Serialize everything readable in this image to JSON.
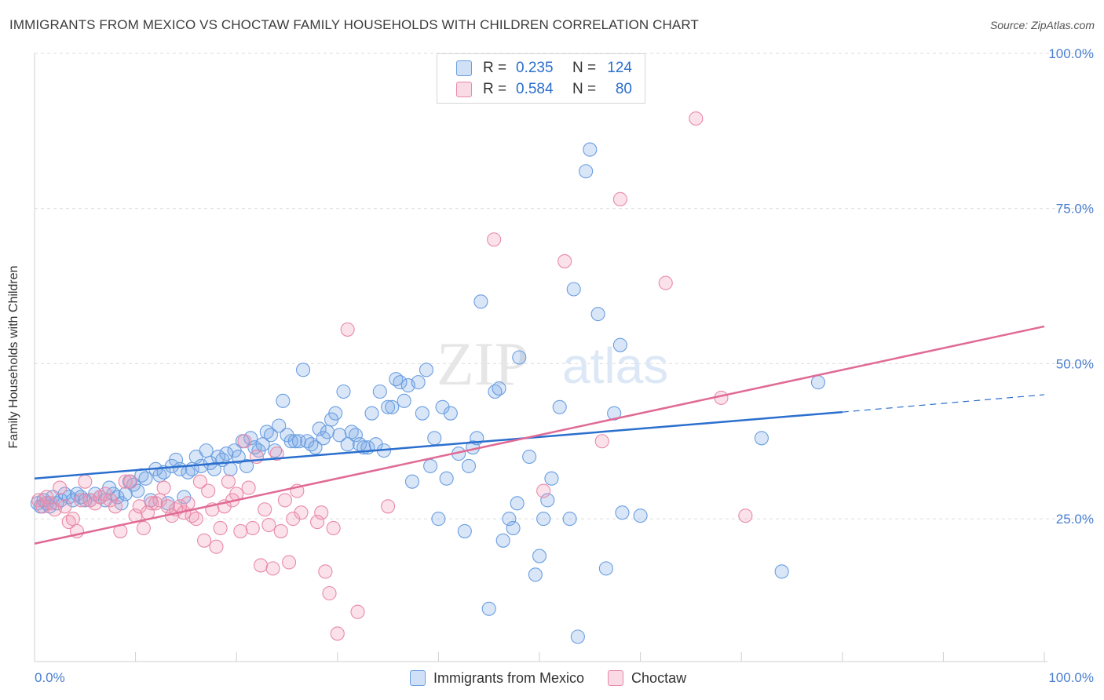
{
  "title": "IMMIGRANTS FROM MEXICO VS CHOCTAW FAMILY HOUSEHOLDS WITH CHILDREN CORRELATION CHART",
  "source": "Source: ZipAtlas.com",
  "watermark": {
    "zip": "ZIP",
    "atlas": "atlas"
  },
  "colors": {
    "blue": "#6a9ee0",
    "blue_fill": "rgba(120,165,230,0.28)",
    "blue_line": "#2b6fce",
    "pink": "#e88aa8",
    "pink_fill": "rgba(240,150,180,0.28)",
    "pink_line": "#e06a95",
    "tick_label": "#4a7fd0",
    "grid": "#dcdcdc"
  },
  "legend": {
    "blue": {
      "r_key": "R =",
      "r_val": "0.235",
      "n_key": "N =",
      "n_val": "124"
    },
    "pink": {
      "r_key": "R =",
      "r_val": "0.584",
      "n_key": "N =",
      "n_val": "80"
    }
  },
  "chart_data": {
    "type": "scatter",
    "title": "IMMIGRANTS FROM MEXICO VS CHOCTAW FAMILY HOUSEHOLDS WITH CHILDREN CORRELATION CHART",
    "xlabel": "",
    "ylabel": "Family Households with Children",
    "xlim": [
      0,
      100
    ],
    "ylim": [
      2,
      100
    ],
    "x_tick_labels": {
      "left": "0.0%",
      "right": "100.0%"
    },
    "y_ticks": [
      25,
      50,
      75,
      100
    ],
    "y_tick_labels": [
      "25.0%",
      "50.0%",
      "75.0%",
      "100.0%"
    ],
    "series": [
      {
        "name": "Immigrants from Mexico",
        "color": "blue",
        "trend": {
          "x0": 0,
          "y0": 31.5,
          "x1": 80,
          "y1": 42.2,
          "dash_to_x": 100,
          "dash_to_y": 45.0
        },
        "points": [
          [
            0.3,
            27.5
          ],
          [
            0.6,
            27.0
          ],
          [
            0.9,
            28.0
          ],
          [
            1.2,
            27.5
          ],
          [
            1.5,
            27.0
          ],
          [
            1.8,
            28.5
          ],
          [
            2.2,
            27.5
          ],
          [
            2.6,
            28.0
          ],
          [
            3.0,
            29.0
          ],
          [
            3.4,
            28.5
          ],
          [
            3.8,
            28.0
          ],
          [
            4.2,
            29.0
          ],
          [
            4.6,
            28.5
          ],
          [
            5.0,
            28.0
          ],
          [
            5.5,
            28.0
          ],
          [
            6.0,
            29.0
          ],
          [
            6.5,
            28.5
          ],
          [
            7.0,
            28.0
          ],
          [
            7.4,
            30.0
          ],
          [
            7.8,
            29.0
          ],
          [
            8.2,
            28.5
          ],
          [
            8.6,
            27.5
          ],
          [
            9.0,
            29.0
          ],
          [
            9.4,
            31.0
          ],
          [
            9.8,
            30.5
          ],
          [
            10.2,
            29.5
          ],
          [
            10.6,
            32.0
          ],
          [
            11.0,
            31.5
          ],
          [
            11.5,
            28.0
          ],
          [
            12.0,
            33.0
          ],
          [
            12.4,
            32.0
          ],
          [
            12.8,
            32.5
          ],
          [
            13.2,
            27.5
          ],
          [
            13.6,
            33.5
          ],
          [
            14.0,
            34.5
          ],
          [
            14.4,
            33.0
          ],
          [
            14.8,
            28.5
          ],
          [
            15.2,
            32.5
          ],
          [
            15.6,
            33.0
          ],
          [
            16.0,
            35.0
          ],
          [
            16.5,
            33.5
          ],
          [
            17.0,
            36.0
          ],
          [
            17.4,
            34.0
          ],
          [
            17.8,
            33.0
          ],
          [
            18.2,
            35.0
          ],
          [
            18.6,
            34.5
          ],
          [
            19.0,
            35.5
          ],
          [
            19.4,
            33.0
          ],
          [
            19.8,
            36.0
          ],
          [
            20.2,
            35.0
          ],
          [
            20.6,
            37.5
          ],
          [
            21.0,
            33.5
          ],
          [
            21.4,
            38.0
          ],
          [
            21.8,
            36.5
          ],
          [
            22.2,
            36.0
          ],
          [
            22.6,
            37.0
          ],
          [
            23.0,
            39.0
          ],
          [
            23.4,
            38.5
          ],
          [
            23.8,
            36.0
          ],
          [
            24.2,
            40.0
          ],
          [
            24.6,
            44.0
          ],
          [
            25.0,
            38.5
          ],
          [
            25.4,
            37.5
          ],
          [
            25.8,
            37.5
          ],
          [
            26.2,
            37.5
          ],
          [
            26.6,
            49.0
          ],
          [
            27.0,
            37.5
          ],
          [
            27.4,
            37.0
          ],
          [
            27.8,
            36.5
          ],
          [
            28.2,
            39.5
          ],
          [
            28.6,
            38.0
          ],
          [
            29.0,
            39.0
          ],
          [
            29.4,
            41.0
          ],
          [
            29.8,
            42.0
          ],
          [
            30.2,
            38.5
          ],
          [
            30.6,
            45.5
          ],
          [
            31.0,
            37.0
          ],
          [
            31.4,
            39.0
          ],
          [
            31.8,
            38.5
          ],
          [
            32.2,
            37.0
          ],
          [
            32.6,
            36.5
          ],
          [
            33.0,
            36.5
          ],
          [
            33.4,
            42.0
          ],
          [
            33.8,
            37.0
          ],
          [
            34.2,
            45.5
          ],
          [
            34.6,
            36.0
          ],
          [
            35.0,
            43.0
          ],
          [
            35.4,
            43.0
          ],
          [
            35.8,
            47.5
          ],
          [
            36.2,
            47.0
          ],
          [
            36.6,
            44.0
          ],
          [
            37.0,
            46.5
          ],
          [
            37.4,
            31.0
          ],
          [
            38.0,
            47.0
          ],
          [
            38.4,
            42.0
          ],
          [
            38.8,
            49.0
          ],
          [
            39.2,
            33.5
          ],
          [
            39.6,
            38.0
          ],
          [
            40.0,
            25.0
          ],
          [
            40.4,
            43.0
          ],
          [
            40.8,
            31.5
          ],
          [
            41.2,
            42.0
          ],
          [
            42.0,
            35.5
          ],
          [
            42.6,
            23.0
          ],
          [
            43.0,
            33.5
          ],
          [
            43.4,
            36.5
          ],
          [
            43.8,
            38.0
          ],
          [
            44.2,
            60.0
          ],
          [
            45.0,
            10.5
          ],
          [
            45.6,
            45.5
          ],
          [
            46.0,
            46.0
          ],
          [
            46.4,
            21.5
          ],
          [
            47.0,
            25.0
          ],
          [
            47.4,
            23.5
          ],
          [
            47.8,
            27.5
          ],
          [
            48.0,
            51.0
          ],
          [
            49.0,
            35.0
          ],
          [
            49.6,
            16.0
          ],
          [
            50.0,
            19.0
          ],
          [
            50.4,
            25.0
          ],
          [
            50.8,
            28.0
          ],
          [
            51.2,
            31.5
          ],
          [
            52.0,
            43.0
          ],
          [
            53.0,
            25.0
          ],
          [
            53.4,
            62.0
          ],
          [
            53.8,
            6.0
          ],
          [
            54.6,
            81.0
          ],
          [
            55.0,
            84.5
          ],
          [
            55.8,
            58.0
          ],
          [
            56.6,
            17.0
          ],
          [
            57.4,
            42.0
          ],
          [
            58.0,
            53.0
          ],
          [
            58.2,
            26.0
          ],
          [
            60.0,
            25.5
          ],
          [
            72.0,
            38.0
          ],
          [
            74.0,
            16.5
          ],
          [
            77.6,
            47.0
          ]
        ]
      },
      {
        "name": "Choctaw",
        "color": "pink",
        "trend": {
          "x0": 0,
          "y0": 21.0,
          "x1": 100,
          "y1": 56.0
        },
        "points": [
          [
            0.4,
            28.0
          ],
          [
            0.8,
            27.0
          ],
          [
            1.2,
            28.5
          ],
          [
            1.6,
            27.5
          ],
          [
            2.0,
            26.5
          ],
          [
            2.5,
            30.0
          ],
          [
            3.0,
            27.0
          ],
          [
            3.4,
            24.5
          ],
          [
            3.8,
            25.0
          ],
          [
            4.2,
            23.0
          ],
          [
            4.6,
            28.0
          ],
          [
            5.0,
            31.0
          ],
          [
            5.5,
            28.0
          ],
          [
            6.0,
            27.5
          ],
          [
            6.5,
            28.5
          ],
          [
            7.0,
            29.0
          ],
          [
            7.5,
            28.0
          ],
          [
            8.0,
            27.0
          ],
          [
            8.5,
            23.0
          ],
          [
            9.0,
            31.0
          ],
          [
            9.5,
            31.0
          ],
          [
            10.0,
            25.5
          ],
          [
            10.4,
            27.0
          ],
          [
            10.8,
            23.5
          ],
          [
            11.2,
            26.0
          ],
          [
            11.6,
            27.5
          ],
          [
            12.0,
            27.5
          ],
          [
            12.4,
            28.0
          ],
          [
            12.8,
            30.0
          ],
          [
            13.2,
            27.0
          ],
          [
            13.6,
            25.5
          ],
          [
            14.0,
            26.5
          ],
          [
            14.4,
            27.0
          ],
          [
            14.8,
            26.0
          ],
          [
            15.2,
            27.5
          ],
          [
            15.6,
            25.5
          ],
          [
            16.0,
            25.0
          ],
          [
            16.4,
            31.0
          ],
          [
            16.8,
            21.5
          ],
          [
            17.2,
            29.5
          ],
          [
            17.6,
            26.5
          ],
          [
            18.0,
            20.5
          ],
          [
            18.4,
            23.5
          ],
          [
            18.8,
            27.0
          ],
          [
            19.2,
            31.0
          ],
          [
            19.6,
            28.0
          ],
          [
            20.0,
            29.0
          ],
          [
            20.4,
            23.0
          ],
          [
            20.8,
            37.5
          ],
          [
            21.2,
            30.0
          ],
          [
            21.6,
            23.5
          ],
          [
            22.0,
            35.0
          ],
          [
            22.4,
            17.5
          ],
          [
            22.8,
            26.5
          ],
          [
            23.2,
            24.0
          ],
          [
            23.6,
            17.0
          ],
          [
            24.0,
            35.5
          ],
          [
            24.4,
            23.0
          ],
          [
            24.8,
            28.0
          ],
          [
            25.2,
            18.0
          ],
          [
            25.6,
            25.0
          ],
          [
            26.0,
            29.5
          ],
          [
            26.4,
            26.0
          ],
          [
            28.0,
            24.5
          ],
          [
            28.4,
            26.0
          ],
          [
            28.8,
            16.5
          ],
          [
            29.2,
            13.0
          ],
          [
            29.6,
            23.5
          ],
          [
            30.0,
            6.5
          ],
          [
            31.0,
            55.5
          ],
          [
            32.0,
            10.0
          ],
          [
            35.0,
            27.0
          ],
          [
            45.5,
            70.0
          ],
          [
            50.4,
            29.5
          ],
          [
            52.5,
            66.5
          ],
          [
            56.2,
            37.5
          ],
          [
            58.0,
            76.5
          ],
          [
            62.5,
            63.0
          ],
          [
            65.5,
            89.5
          ],
          [
            68.0,
            44.5
          ],
          [
            70.4,
            25.5
          ]
        ]
      }
    ]
  }
}
